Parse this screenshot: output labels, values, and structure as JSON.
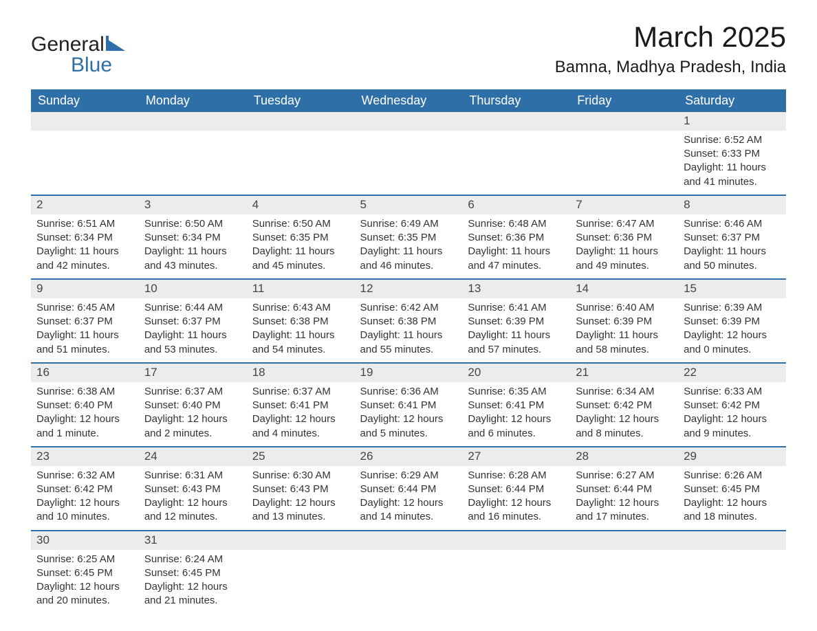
{
  "brand": {
    "word1": "General",
    "word2": "Blue",
    "icon_color": "#2f6fa8"
  },
  "header": {
    "month_title": "March 2025",
    "location": "Bamna, Madhya Pradesh, India"
  },
  "styles": {
    "header_bg": "#2f6fa8",
    "header_fg": "#ffffff",
    "daynum_bg": "#ececec",
    "row_divider": "#2f6fa8",
    "body_bg": "#ffffff",
    "text_color": "#333333",
    "title_fontsize": 42,
    "location_fontsize": 24,
    "day_header_fontsize": 18,
    "cell_fontsize": 15
  },
  "day_headers": [
    "Sunday",
    "Monday",
    "Tuesday",
    "Wednesday",
    "Thursday",
    "Friday",
    "Saturday"
  ],
  "weeks": [
    [
      null,
      null,
      null,
      null,
      null,
      null,
      {
        "n": "1",
        "sr": "Sunrise: 6:52 AM",
        "ss": "Sunset: 6:33 PM",
        "d1": "Daylight: 11 hours",
        "d2": "and 41 minutes."
      }
    ],
    [
      {
        "n": "2",
        "sr": "Sunrise: 6:51 AM",
        "ss": "Sunset: 6:34 PM",
        "d1": "Daylight: 11 hours",
        "d2": "and 42 minutes."
      },
      {
        "n": "3",
        "sr": "Sunrise: 6:50 AM",
        "ss": "Sunset: 6:34 PM",
        "d1": "Daylight: 11 hours",
        "d2": "and 43 minutes."
      },
      {
        "n": "4",
        "sr": "Sunrise: 6:50 AM",
        "ss": "Sunset: 6:35 PM",
        "d1": "Daylight: 11 hours",
        "d2": "and 45 minutes."
      },
      {
        "n": "5",
        "sr": "Sunrise: 6:49 AM",
        "ss": "Sunset: 6:35 PM",
        "d1": "Daylight: 11 hours",
        "d2": "and 46 minutes."
      },
      {
        "n": "6",
        "sr": "Sunrise: 6:48 AM",
        "ss": "Sunset: 6:36 PM",
        "d1": "Daylight: 11 hours",
        "d2": "and 47 minutes."
      },
      {
        "n": "7",
        "sr": "Sunrise: 6:47 AM",
        "ss": "Sunset: 6:36 PM",
        "d1": "Daylight: 11 hours",
        "d2": "and 49 minutes."
      },
      {
        "n": "8",
        "sr": "Sunrise: 6:46 AM",
        "ss": "Sunset: 6:37 PM",
        "d1": "Daylight: 11 hours",
        "d2": "and 50 minutes."
      }
    ],
    [
      {
        "n": "9",
        "sr": "Sunrise: 6:45 AM",
        "ss": "Sunset: 6:37 PM",
        "d1": "Daylight: 11 hours",
        "d2": "and 51 minutes."
      },
      {
        "n": "10",
        "sr": "Sunrise: 6:44 AM",
        "ss": "Sunset: 6:37 PM",
        "d1": "Daylight: 11 hours",
        "d2": "and 53 minutes."
      },
      {
        "n": "11",
        "sr": "Sunrise: 6:43 AM",
        "ss": "Sunset: 6:38 PM",
        "d1": "Daylight: 11 hours",
        "d2": "and 54 minutes."
      },
      {
        "n": "12",
        "sr": "Sunrise: 6:42 AM",
        "ss": "Sunset: 6:38 PM",
        "d1": "Daylight: 11 hours",
        "d2": "and 55 minutes."
      },
      {
        "n": "13",
        "sr": "Sunrise: 6:41 AM",
        "ss": "Sunset: 6:39 PM",
        "d1": "Daylight: 11 hours",
        "d2": "and 57 minutes."
      },
      {
        "n": "14",
        "sr": "Sunrise: 6:40 AM",
        "ss": "Sunset: 6:39 PM",
        "d1": "Daylight: 11 hours",
        "d2": "and 58 minutes."
      },
      {
        "n": "15",
        "sr": "Sunrise: 6:39 AM",
        "ss": "Sunset: 6:39 PM",
        "d1": "Daylight: 12 hours",
        "d2": "and 0 minutes."
      }
    ],
    [
      {
        "n": "16",
        "sr": "Sunrise: 6:38 AM",
        "ss": "Sunset: 6:40 PM",
        "d1": "Daylight: 12 hours",
        "d2": "and 1 minute."
      },
      {
        "n": "17",
        "sr": "Sunrise: 6:37 AM",
        "ss": "Sunset: 6:40 PM",
        "d1": "Daylight: 12 hours",
        "d2": "and 2 minutes."
      },
      {
        "n": "18",
        "sr": "Sunrise: 6:37 AM",
        "ss": "Sunset: 6:41 PM",
        "d1": "Daylight: 12 hours",
        "d2": "and 4 minutes."
      },
      {
        "n": "19",
        "sr": "Sunrise: 6:36 AM",
        "ss": "Sunset: 6:41 PM",
        "d1": "Daylight: 12 hours",
        "d2": "and 5 minutes."
      },
      {
        "n": "20",
        "sr": "Sunrise: 6:35 AM",
        "ss": "Sunset: 6:41 PM",
        "d1": "Daylight: 12 hours",
        "d2": "and 6 minutes."
      },
      {
        "n": "21",
        "sr": "Sunrise: 6:34 AM",
        "ss": "Sunset: 6:42 PM",
        "d1": "Daylight: 12 hours",
        "d2": "and 8 minutes."
      },
      {
        "n": "22",
        "sr": "Sunrise: 6:33 AM",
        "ss": "Sunset: 6:42 PM",
        "d1": "Daylight: 12 hours",
        "d2": "and 9 minutes."
      }
    ],
    [
      {
        "n": "23",
        "sr": "Sunrise: 6:32 AM",
        "ss": "Sunset: 6:42 PM",
        "d1": "Daylight: 12 hours",
        "d2": "and 10 minutes."
      },
      {
        "n": "24",
        "sr": "Sunrise: 6:31 AM",
        "ss": "Sunset: 6:43 PM",
        "d1": "Daylight: 12 hours",
        "d2": "and 12 minutes."
      },
      {
        "n": "25",
        "sr": "Sunrise: 6:30 AM",
        "ss": "Sunset: 6:43 PM",
        "d1": "Daylight: 12 hours",
        "d2": "and 13 minutes."
      },
      {
        "n": "26",
        "sr": "Sunrise: 6:29 AM",
        "ss": "Sunset: 6:44 PM",
        "d1": "Daylight: 12 hours",
        "d2": "and 14 minutes."
      },
      {
        "n": "27",
        "sr": "Sunrise: 6:28 AM",
        "ss": "Sunset: 6:44 PM",
        "d1": "Daylight: 12 hours",
        "d2": "and 16 minutes."
      },
      {
        "n": "28",
        "sr": "Sunrise: 6:27 AM",
        "ss": "Sunset: 6:44 PM",
        "d1": "Daylight: 12 hours",
        "d2": "and 17 minutes."
      },
      {
        "n": "29",
        "sr": "Sunrise: 6:26 AM",
        "ss": "Sunset: 6:45 PM",
        "d1": "Daylight: 12 hours",
        "d2": "and 18 minutes."
      }
    ],
    [
      {
        "n": "30",
        "sr": "Sunrise: 6:25 AM",
        "ss": "Sunset: 6:45 PM",
        "d1": "Daylight: 12 hours",
        "d2": "and 20 minutes."
      },
      {
        "n": "31",
        "sr": "Sunrise: 6:24 AM",
        "ss": "Sunset: 6:45 PM",
        "d1": "Daylight: 12 hours",
        "d2": "and 21 minutes."
      },
      null,
      null,
      null,
      null,
      null
    ]
  ]
}
